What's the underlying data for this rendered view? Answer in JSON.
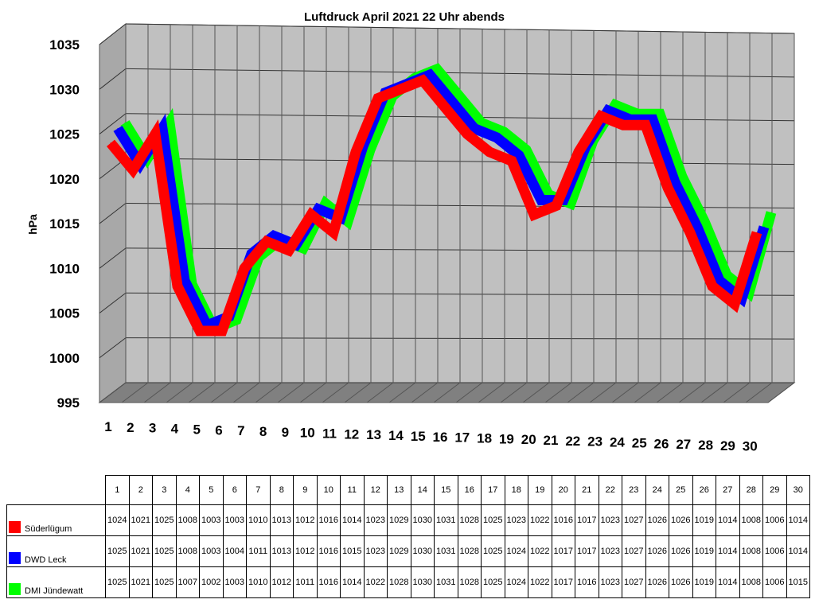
{
  "chart_data": {
    "type": "line",
    "style": "3d-ribbon",
    "title": "Luftdruck April 2021 22 Uhr abends",
    "ylabel": "hPa",
    "xlabel": "",
    "ylim": [
      995,
      1035
    ],
    "yticks": [
      "995",
      "1000",
      "1005",
      "1010",
      "1015",
      "1020",
      "1025",
      "1030",
      "1035"
    ],
    "categories": [
      "1",
      "2",
      "3",
      "4",
      "5",
      "6",
      "7",
      "8",
      "9",
      "10",
      "11",
      "12",
      "13",
      "14",
      "15",
      "16",
      "17",
      "18",
      "19",
      "20",
      "21",
      "22",
      "23",
      "24",
      "25",
      "26",
      "27",
      "28",
      "29",
      "30"
    ],
    "grid": true,
    "legend": "data-table-below",
    "series": [
      {
        "name": "Süderlügum",
        "color": "#ff0000",
        "values": [
          1024,
          1021,
          1025,
          1008,
          1003,
          1003,
          1010,
          1013,
          1012,
          1016,
          1014,
          1023,
          1029,
          1030,
          1031,
          1028,
          1025,
          1023,
          1022,
          1016,
          1017,
          1023,
          1027,
          1026,
          1026,
          1019,
          1014,
          1008,
          1006,
          1014
        ]
      },
      {
        "name": "DWD Leck",
        "color": "#0000ff",
        "values": [
          1025,
          1021,
          1025,
          1008,
          1003,
          1004,
          1011,
          1013,
          1012,
          1016,
          1015,
          1023,
          1029,
          1030,
          1031,
          1028,
          1025,
          1024,
          1022,
          1017,
          1017,
          1023,
          1027,
          1026,
          1026,
          1019,
          1014,
          1008,
          1006,
          1014
        ]
      },
      {
        "name": "DMI Jündewatt",
        "color": "#00ff00",
        "values": [
          1025,
          1021,
          1025,
          1007,
          1002,
          1003,
          1010,
          1012,
          1011,
          1016,
          1014,
          1022,
          1028,
          1030,
          1031,
          1028,
          1025,
          1024,
          1022,
          1017,
          1016,
          1023,
          1027,
          1026,
          1026,
          1019,
          1014,
          1008,
          1006,
          1015
        ]
      }
    ]
  }
}
